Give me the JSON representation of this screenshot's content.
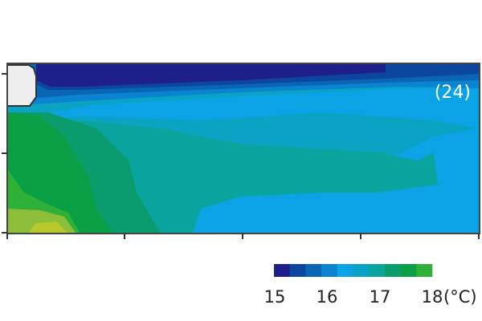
{
  "chart_data": {
    "type": "heatmap",
    "title": "",
    "annotation": "(24)",
    "colorbar": {
      "ticks": [
        "15",
        "16",
        "17",
        "18"
      ],
      "unit": "(°C)",
      "range": [
        15,
        18
      ],
      "colors": [
        "#1f1f8a",
        "#0b479f",
        "#0a66b5",
        "#0a84d0",
        "#0ba3e6",
        "#0aa3c4",
        "#0aa49e",
        "#0a9c6c",
        "#0a9f45",
        "#2eb136"
      ]
    },
    "regions": {
      "obstacle_color": "#eeeeee",
      "warmest_color": "#b8c82c",
      "warm_color": "#8cbe3a"
    }
  }
}
